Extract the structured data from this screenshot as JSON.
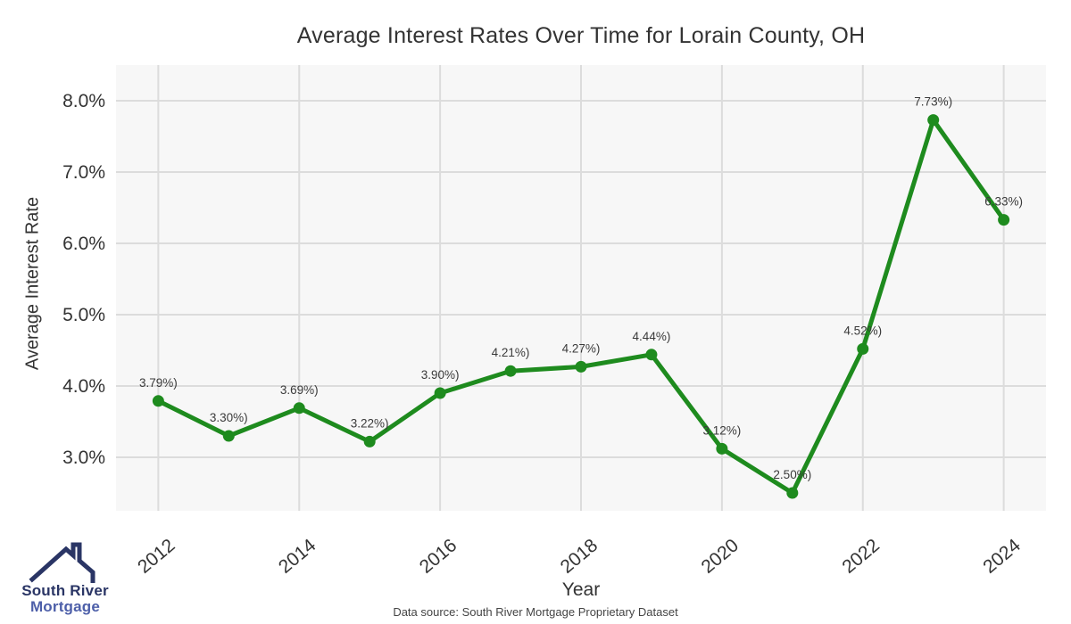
{
  "title": "Average Interest Rates Over Time for Lorain County, OH",
  "footer": {
    "source_note": "Data source: South River Mortgage Proprietary Dataset"
  },
  "logo": {
    "line1": "South River",
    "line2": "Mortgage",
    "icon": "house-roof-icon",
    "color_primary": "#2a3565",
    "color_secondary": "#4d5fa9"
  },
  "chart_data": {
    "type": "line",
    "title": "Average Interest Rates Over Time for Lorain County, OH",
    "xlabel": "Year",
    "ylabel": "Average Interest Rate",
    "x": [
      2012,
      2013,
      2014,
      2015,
      2016,
      2017,
      2018,
      2019,
      2020,
      2021,
      2022,
      2023,
      2024
    ],
    "values": [
      3.79,
      3.3,
      3.69,
      3.22,
      3.9,
      4.21,
      4.27,
      4.44,
      3.12,
      2.5,
      4.52,
      7.73,
      6.33
    ],
    "point_labels": [
      "3.79%)",
      "3.30%)",
      "3.69%)",
      "3.22%)",
      "3.90%)",
      "4.21%)",
      "4.27%)",
      "4.44%)",
      "3.12%)",
      "2.50%)",
      "4.52%)",
      "7.73%)",
      "6.33%)"
    ],
    "xticks": [
      2012,
      2014,
      2016,
      2018,
      2020,
      2022,
      2024
    ],
    "ytick_values": [
      3,
      4,
      5,
      6,
      7,
      8
    ],
    "ytick_labels": [
      "3.0%",
      "4.0%",
      "5.0%",
      "6.0%",
      "7.0%",
      "8.0%"
    ],
    "xlim": [
      2011.4,
      2024.6
    ],
    "ylim": [
      2.25,
      8.5
    ],
    "grid": true,
    "legend": "none",
    "line_color": "#1e8b1e",
    "marker_color": "#1e8b1e",
    "plot_bg": "#f7f7f7",
    "grid_color": "#dcdcdc",
    "tick_color": "#333333",
    "point_label_color": "#3a3a3a"
  }
}
